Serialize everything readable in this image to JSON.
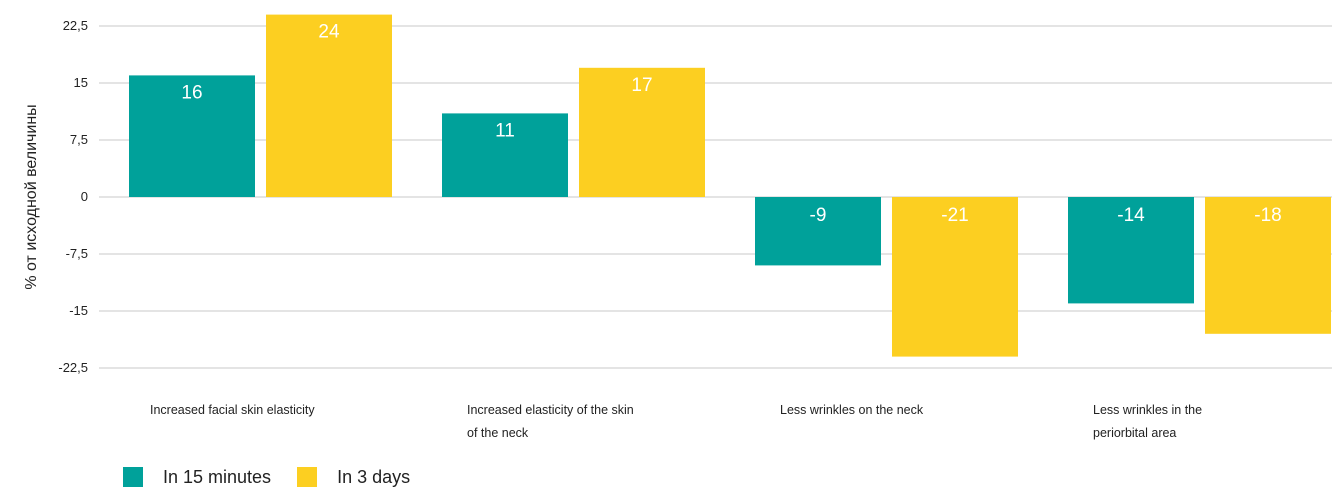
{
  "chart_data": {
    "type": "bar",
    "ylabel": "% от исходной величины",
    "ylim": [
      -22.5,
      22.5
    ],
    "yticks": [
      "22,5",
      "15",
      "7,5",
      "0",
      "-7,5",
      "-15",
      "-22,5"
    ],
    "ytick_values": [
      22.5,
      15,
      7.5,
      0,
      -7.5,
      -15,
      -22.5
    ],
    "grid": true,
    "legend_position": "bottom-left",
    "categories": [
      [
        "Increased facial skin elasticity"
      ],
      [
        "Increased elasticity of the skin",
        "of the neck"
      ],
      [
        "Less wrinkles on the neck"
      ],
      [
        "Less wrinkles in the",
        "periorbital area"
      ]
    ],
    "series": [
      {
        "name": "In 15 minutes",
        "color": "#00a19a",
        "values": [
          16,
          11,
          -9,
          -14
        ]
      },
      {
        "name": "In 3 days",
        "color": "#fccf21",
        "values": [
          24,
          17,
          -21,
          -18
        ]
      }
    ],
    "value_labels": [
      [
        "16",
        "11",
        "-9",
        "-14"
      ],
      [
        "24",
        "17",
        "-21",
        "-18"
      ]
    ]
  }
}
